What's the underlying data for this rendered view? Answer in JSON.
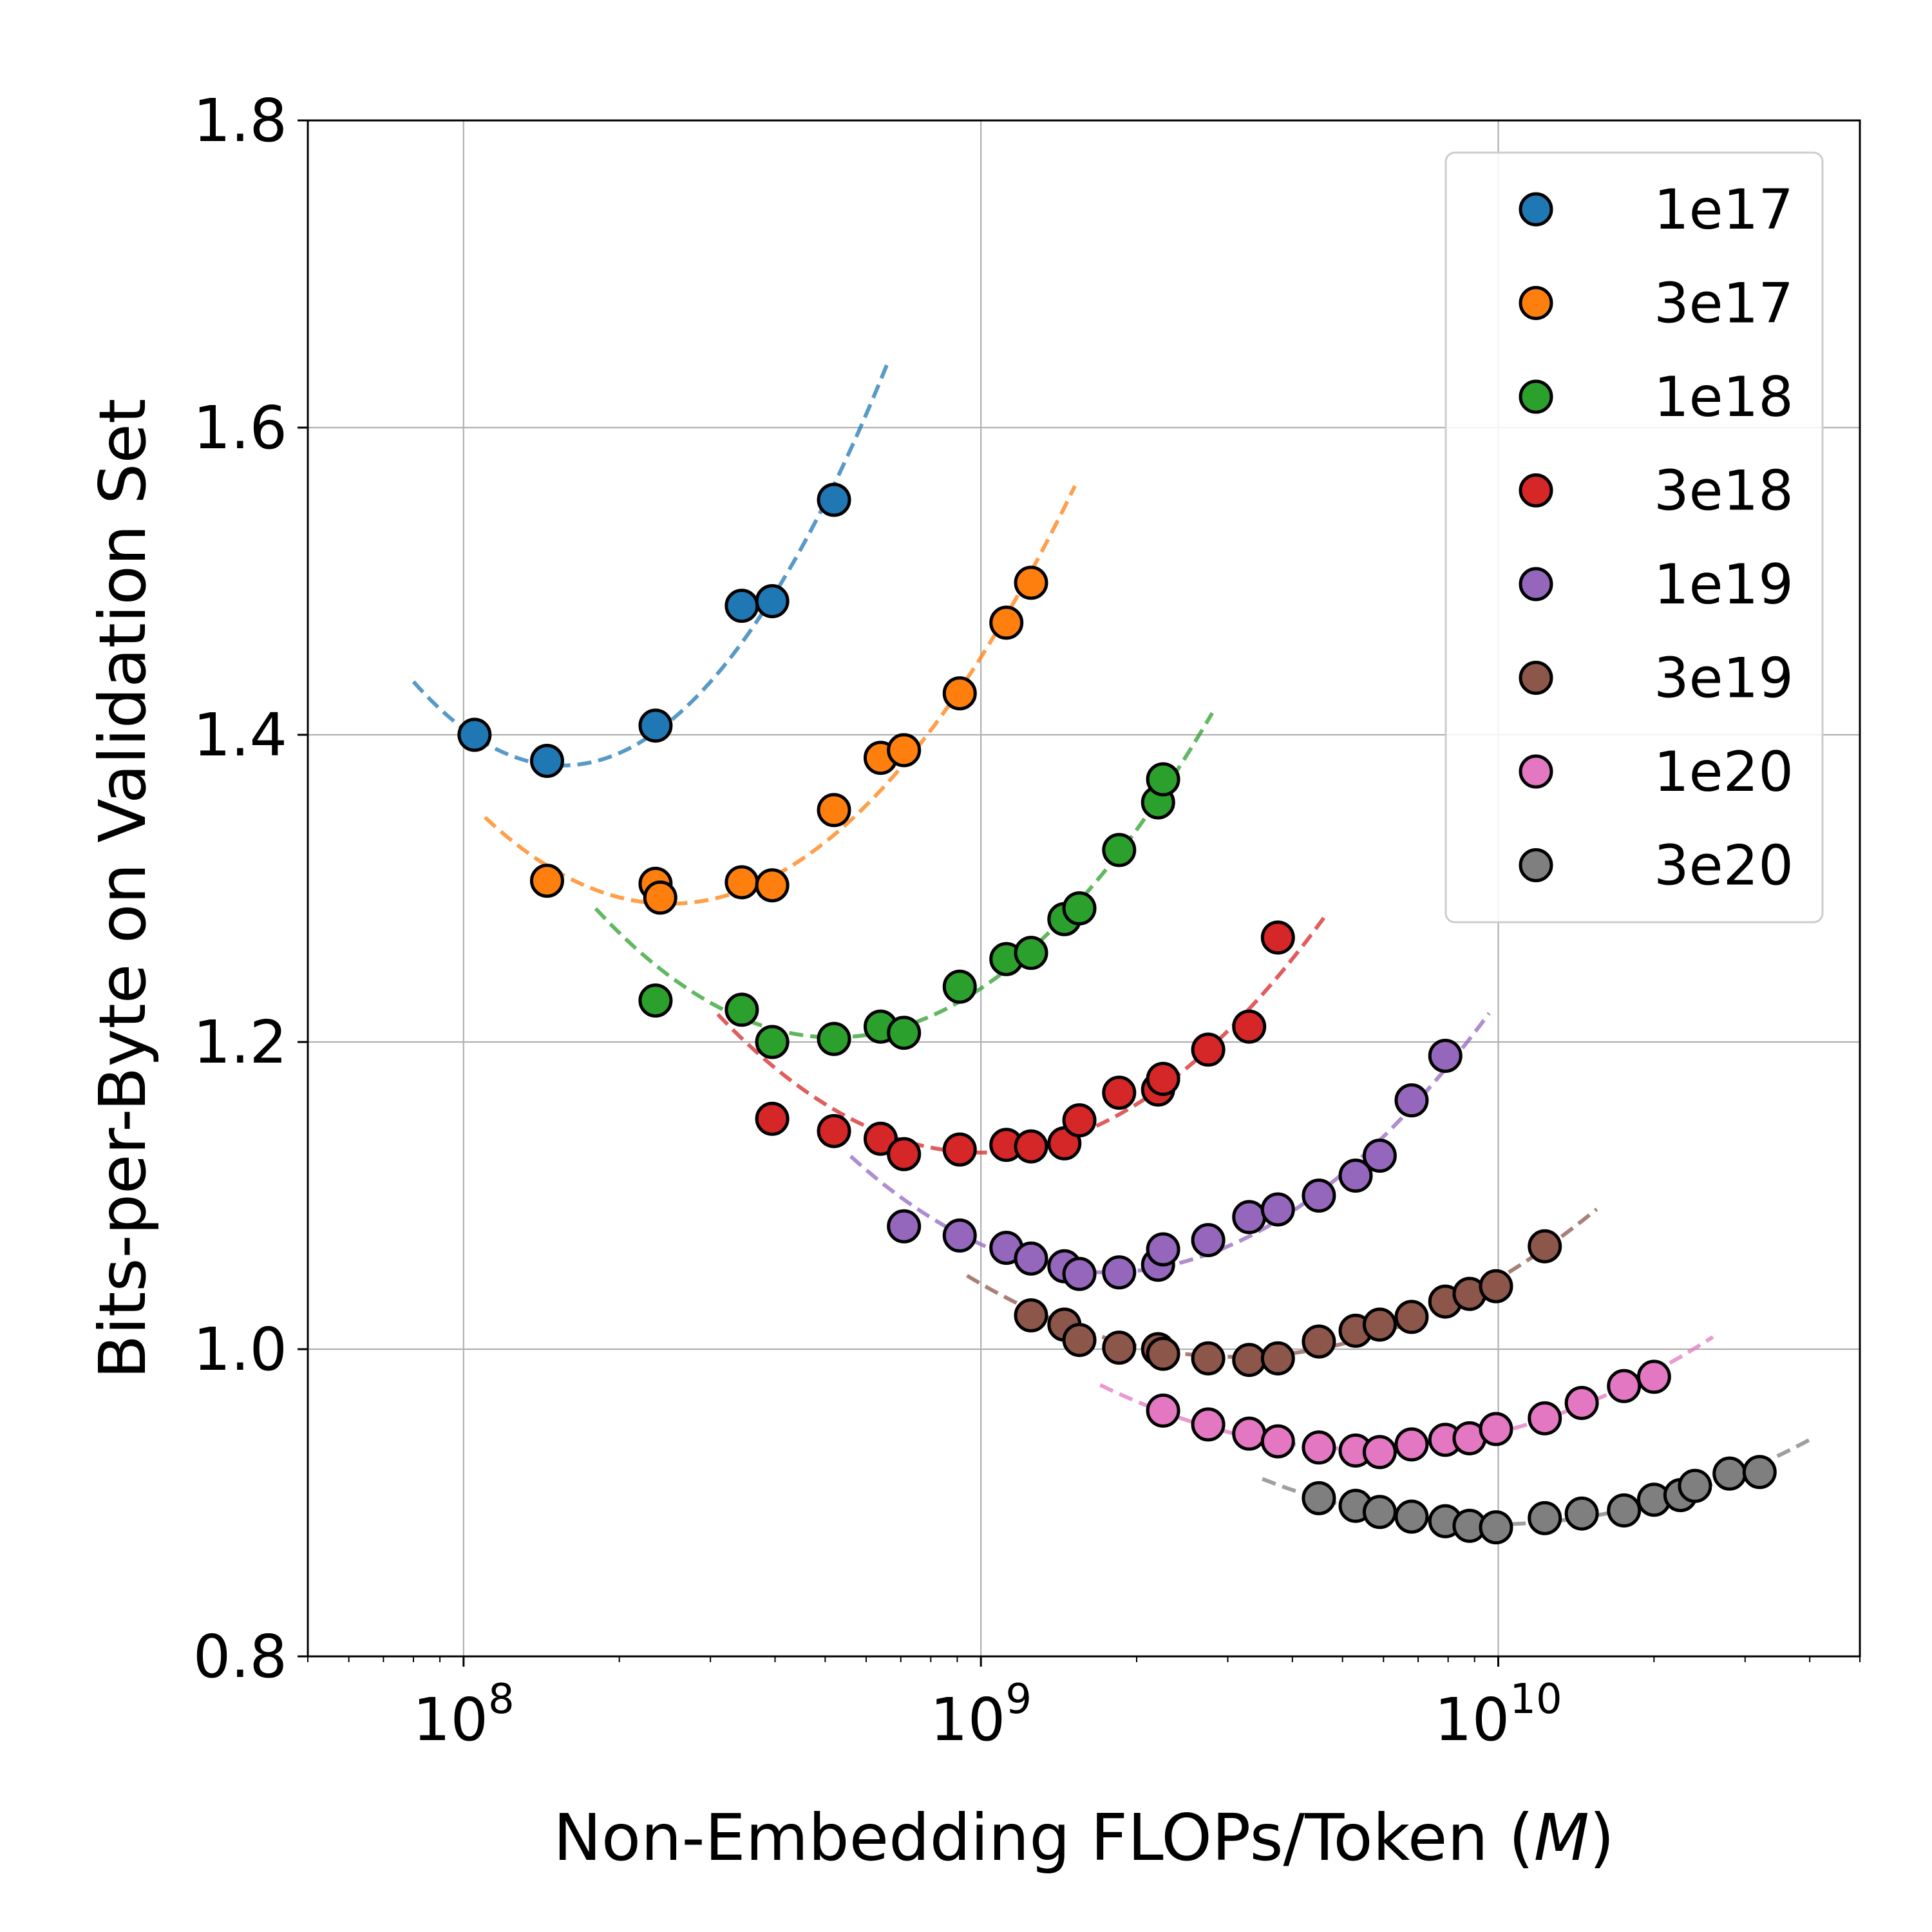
{
  "chart_data": {
    "type": "scatter",
    "xscale": "log",
    "xlabel": "Non-Embedding FLOPs/Token (M)",
    "xlabel_main": "Non-Embedding FLOPs/Token (",
    "xlabel_italic": "M",
    "xlabel_close": ")",
    "ylabel": "Bits-per-Byte on Validation Set",
    "xlim": [
      50000000,
      50000000000
    ],
    "ylim": [
      0.8,
      1.8
    ],
    "grid": true,
    "legend_position": "top-right",
    "y_ticks": [
      {
        "value": 0.8,
        "label": "0.8"
      },
      {
        "value": 1.0,
        "label": "1.0"
      },
      {
        "value": 1.2,
        "label": "1.2"
      },
      {
        "value": 1.4,
        "label": "1.4"
      },
      {
        "value": 1.6,
        "label": "1.6"
      },
      {
        "value": 1.8,
        "label": "1.8"
      }
    ],
    "x_ticks": [
      {
        "value": 100000000,
        "base": "10",
        "exp": "8"
      },
      {
        "value": 1000000000,
        "base": "10",
        "exp": "9"
      },
      {
        "value": 10000000000,
        "base": "10",
        "exp": "10"
      }
    ],
    "series": [
      {
        "name": "1e17",
        "color": "#1f77b4",
        "x": [
          105000000.0,
          145000000.0,
          235000000.0,
          345000000.0,
          395000000.0,
          520000000.0
        ],
        "y": [
          1.4,
          1.383,
          1.406,
          1.484,
          1.487,
          1.553
        ],
        "fit_x": [
          80000000.0,
          660000000.0
        ],
        "fit_xmin": 155000000.0,
        "fit_ymin": 1.38
      },
      {
        "name": "3e17",
        "color": "#ff7f0e",
        "x": [
          145000000.0,
          235000000.0,
          240000000.0,
          345000000.0,
          395000000.0,
          520000000.0,
          640000000.0,
          710000000.0,
          910000000.0,
          1120000000.0,
          1250000000.0
        ],
        "y": [
          1.305,
          1.303,
          1.294,
          1.304,
          1.302,
          1.351,
          1.385,
          1.39,
          1.427,
          1.473,
          1.499
        ],
        "fit_x": [
          110000000.0,
          1520000000.0
        ],
        "fit_xmin": 250000000.0,
        "fit_ymin": 1.29
      },
      {
        "name": "1e18",
        "color": "#2ca02c",
        "x": [
          235000000.0,
          345000000.0,
          395000000.0,
          520000000.0,
          640000000.0,
          710000000.0,
          910000000.0,
          1120000000.0,
          1250000000.0,
          1450000000.0,
          1550000000.0,
          1850000000.0,
          2200000000.0,
          2250000000.0
        ],
        "y": [
          1.227,
          1.221,
          1.2,
          1.202,
          1.21,
          1.206,
          1.236,
          1.254,
          1.258,
          1.28,
          1.287,
          1.325,
          1.356,
          1.371
        ],
        "fit_x": [
          180000000.0,
          2800000000.0
        ],
        "fit_xmin": 520000000.0,
        "fit_ymin": 1.203
      },
      {
        "name": "3e18",
        "color": "#d62728",
        "x": [
          395000000.0,
          520000000.0,
          640000000.0,
          710000000.0,
          910000000.0,
          1120000000.0,
          1250000000.0,
          1450000000.0,
          1550000000.0,
          1850000000.0,
          2200000000.0,
          2250000000.0,
          2750000000.0,
          3300000000.0,
          3750000000.0
        ],
        "y": [
          1.15,
          1.142,
          1.137,
          1.127,
          1.13,
          1.133,
          1.132,
          1.134,
          1.149,
          1.167,
          1.169,
          1.176,
          1.195,
          1.21,
          1.268
        ],
        "fit_x": [
          310000000.0,
          4600000000.0
        ],
        "fit_xmin": 1000000000.0,
        "fit_ymin": 1.128
      },
      {
        "name": "1e19",
        "color": "#9467bd",
        "x": [
          710000000.0,
          910000000.0,
          1120000000.0,
          1250000000.0,
          1450000000.0,
          1550000000.0,
          1850000000.0,
          2200000000.0,
          2250000000.0,
          2750000000.0,
          3300000000.0,
          3750000000.0,
          4500000000.0,
          5300000000.0,
          5900000000.0,
          6800000000.0,
          7900000000.0
        ],
        "y": [
          1.08,
          1.074,
          1.066,
          1.059,
          1.054,
          1.049,
          1.05,
          1.055,
          1.065,
          1.071,
          1.086,
          1.091,
          1.1,
          1.113,
          1.126,
          1.162,
          1.191
        ],
        "fit_x": [
          560000000.0,
          9600000000.0
        ],
        "fit_xmin": 1750000000.0,
        "fit_ymin": 1.05
      },
      {
        "name": "3e19",
        "color": "#8c564b",
        "x": [
          1250000000.0,
          1450000000.0,
          1550000000.0,
          1850000000.0,
          2200000000.0,
          2250000000.0,
          2750000000.0,
          3300000000.0,
          3750000000.0,
          4500000000.0,
          5300000000.0,
          5900000000.0,
          6800000000.0,
          7900000000.0,
          8800000000.0,
          9900000000.0,
          12300000000.0
        ],
        "y": [
          1.022,
          1.016,
          1.006,
          1.001,
          1.0,
          0.997,
          0.994,
          0.993,
          0.994,
          1.005,
          1.012,
          1.016,
          1.021,
          1.031,
          1.036,
          1.041,
          1.067
        ],
        "fit_x": [
          940000000.0,
          15500000000.0
        ],
        "fit_xmin": 3100000000.0,
        "fit_ymin": 0.995
      },
      {
        "name": "1e20",
        "color": "#e377c2",
        "x": [
          2250000000.0,
          2750000000.0,
          3300000000.0,
          3750000000.0,
          4500000000.0,
          5300000000.0,
          5900000000.0,
          6800000000.0,
          7900000000.0,
          8800000000.0,
          9900000000.0,
          12300000000.0,
          14500000000.0,
          17500000000.0,
          20000000000.0
        ],
        "y": [
          0.96,
          0.951,
          0.945,
          0.94,
          0.936,
          0.934,
          0.933,
          0.938,
          0.941,
          0.942,
          0.948,
          0.955,
          0.965,
          0.976,
          0.982
        ],
        "fit_x": [
          1700000000.0,
          26000000000.0
        ],
        "fit_xmin": 5500000000.0,
        "fit_ymin": 0.935
      },
      {
        "name": "3e20",
        "color": "#7f7f7f",
        "x": [
          4500000000.0,
          5300000000.0,
          5900000000.0,
          6800000000.0,
          7900000000.0,
          8800000000.0,
          9900000000.0,
          12300000000.0,
          14500000000.0,
          17500000000.0,
          20000000000.0,
          22500000000.0,
          24000000000.0,
          28000000000.0,
          32000000000.0
        ],
        "y": [
          0.903,
          0.898,
          0.894,
          0.891,
          0.888,
          0.885,
          0.884,
          0.89,
          0.893,
          0.895,
          0.902,
          0.905,
          0.911,
          0.919,
          0.92
        ],
        "fit_x": [
          3500000000.0,
          40000000000.0
        ],
        "fit_xmin": 9800000000.0,
        "fit_ymin": 0.886
      }
    ]
  }
}
